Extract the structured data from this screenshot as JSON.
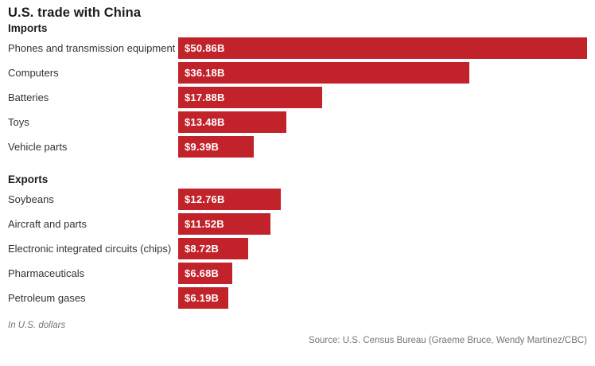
{
  "title": "U.S. trade with China",
  "chart_data": {
    "type": "bar",
    "orientation": "horizontal",
    "title": "U.S. trade with China",
    "unit": "USD billions",
    "value_axis_max": 50.86,
    "grid": false,
    "legend": "none",
    "bar_color": "#c2232b",
    "sections": [
      {
        "heading": "Imports",
        "categories": [
          "Phones and transmission equipment",
          "Computers",
          "Batteries",
          "Toys",
          "Vehicle parts"
        ],
        "values": [
          50.86,
          36.18,
          17.88,
          13.48,
          9.39
        ],
        "value_labels": [
          "$50.86B",
          "$36.18B",
          "$17.88B",
          "$13.48B",
          "$9.39B"
        ]
      },
      {
        "heading": "Exports",
        "categories": [
          "Soybeans",
          "Aircraft and parts",
          "Electronic integrated circuits (chips)",
          "Pharmaceuticals",
          "Petroleum gases"
        ],
        "values": [
          12.76,
          11.52,
          8.72,
          6.68,
          6.19
        ],
        "value_labels": [
          "$12.76B",
          "$11.52B",
          "$8.72B",
          "$6.68B",
          "$6.19B"
        ]
      }
    ]
  },
  "footnote": "In U.S. dollars",
  "source": "Source: U.S. Census Bureau (Graeme Bruce, Wendy Martinez/CBC)",
  "colors": {
    "bar": "#c2232b",
    "title_text": "#1c1c1c",
    "label_text": "#333333",
    "muted_text": "#757575",
    "bar_value_text": "#ffffff"
  }
}
